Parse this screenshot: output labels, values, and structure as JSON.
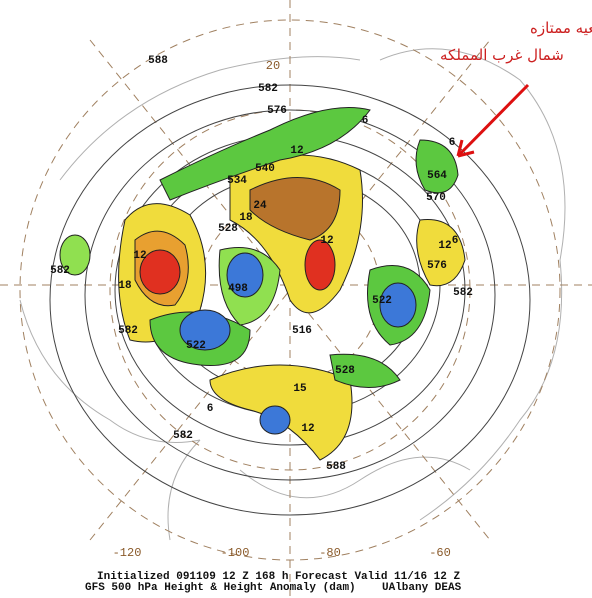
{
  "annotation": {
    "lines": [
      "المنخفض العلوي ووضعيه ممتازه",
      "شمال غرب المملكه"
    ]
  },
  "longitude_labels": [
    "20",
    "-120",
    "-100",
    "-80",
    "-60"
  ],
  "contour_labels": [
    "588",
    "582",
    "576",
    "570",
    "564",
    "540",
    "534",
    "528",
    "522",
    "516",
    "498",
    "582",
    "582",
    "582",
    "588",
    "582",
    "576",
    "522",
    "528",
    "12",
    "6",
    "6",
    "12",
    "18",
    "24",
    "18",
    "12",
    "6",
    "12",
    "15",
    "6",
    "12"
  ],
  "footer": {
    "line1": "Initialized 091109 12 Z  168 h Forecast Valid 11/16 12 Z",
    "line2": "GFS 500 hPa Height & Height Anomaly (dam)",
    "credit": "UAlbany DEAS"
  }
}
